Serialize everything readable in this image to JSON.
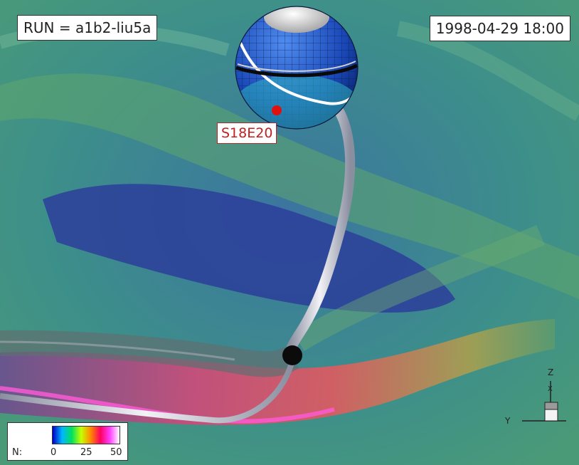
{
  "run_label": "RUN = a1b2-liu5a",
  "time_label": "1998-04-29 18:00",
  "source_location_label": "S18E20",
  "legend": {
    "variable": "N:",
    "ticks": [
      "0",
      "25",
      "50"
    ]
  },
  "axes_triad": {
    "z_label": "Z",
    "x_label": "X",
    "y_label": "Y"
  },
  "colors": {
    "background": "#3d8f8a",
    "sun_grid": "#1a48b8",
    "flux_rope": "#d8d8e0",
    "marker": "#e01010"
  }
}
